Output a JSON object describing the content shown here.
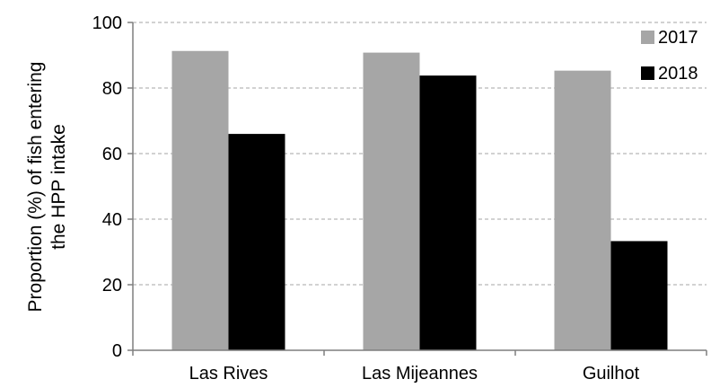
{
  "chart_data": {
    "type": "bar",
    "title": "",
    "xlabel": "",
    "ylabel_lines": [
      "Proportion (%) of fish entering",
      "the HPP intake"
    ],
    "categories": [
      "Las Rives",
      "Las Mijeannes",
      "Guilhot"
    ],
    "series": [
      {
        "name": "2017",
        "color": "#a6a6a6",
        "values": [
          91.3,
          90.8,
          85.3
        ]
      },
      {
        "name": "2018",
        "color": "#000000",
        "values": [
          66.0,
          83.8,
          33.3
        ]
      }
    ],
    "ylim": [
      0,
      100
    ],
    "yticks": [
      "0",
      "20",
      "40",
      "60",
      "80",
      "100"
    ],
    "grid": true,
    "legend_position": "top-right"
  }
}
